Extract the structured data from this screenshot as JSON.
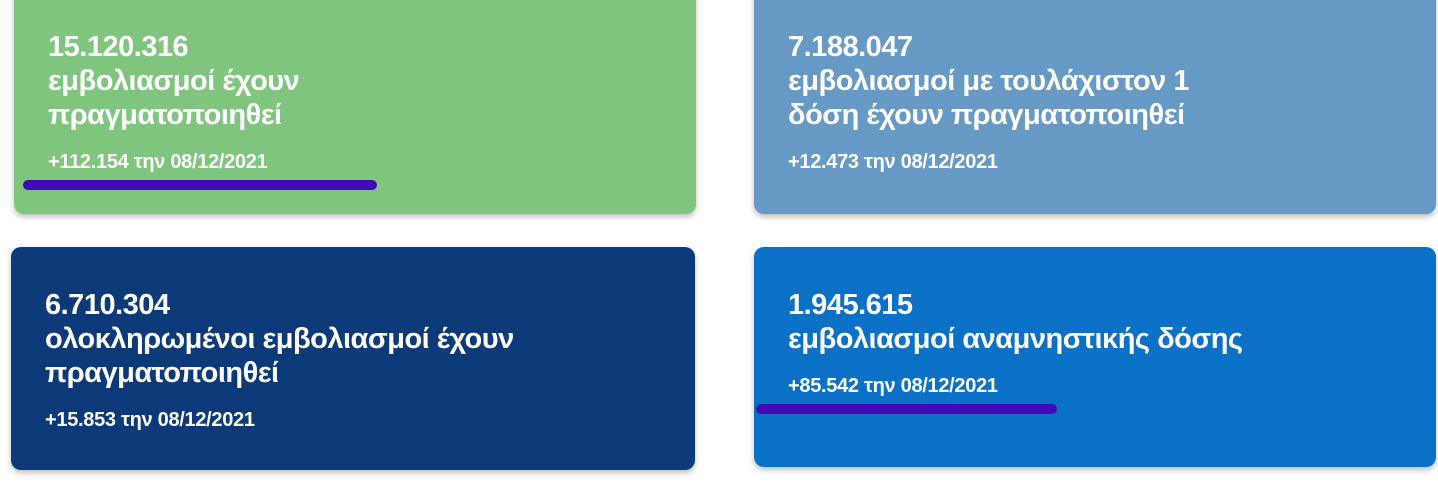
{
  "page": {
    "background_color": "#ffffff",
    "text_color": "#ffffff",
    "underline_color": "#420ab4"
  },
  "cards": [
    {
      "id": "total-vaccinations",
      "value": "15.120.316",
      "label": "εμβολιασμοί έχουν πραγματοποιηθεί",
      "label_lines": [
        "εμβολιασμοί έχουν",
        "πραγματοποιηθεί"
      ],
      "delta": "+112.154 την 08/12/2021",
      "bg_color": "#7fc57d",
      "underline": true,
      "underline_color": "#420ab4"
    },
    {
      "id": "at-least-one-dose",
      "value": "7.188.047",
      "label": "εμβολιασμοί με τουλάχιστον 1 δόση έχουν πραγματοποιηθεί",
      "label_lines": [
        "εμβολιασμοί με τουλάχιστον 1",
        "δόση έχουν πραγματοποιηθεί"
      ],
      "delta": "+12.473 την 08/12/2021",
      "bg_color": "#6699c4",
      "underline": false
    },
    {
      "id": "completed-vaccinations",
      "value": "6.710.304",
      "label": "ολοκληρωμένοι εμβολιασμοί έχουν πραγματοποιηθεί",
      "label_lines": [
        "ολοκληρωμένοι εμβολιασμοί έχουν",
        "πραγματοποιηθεί"
      ],
      "delta": "+15.853 την 08/12/2021",
      "bg_color": "#0c3a78",
      "underline": false
    },
    {
      "id": "booster-doses",
      "value": "1.945.615",
      "label": "εμβολιασμοί αναμνηστικής δόσης",
      "label_lines": [
        "εμβολιασμοί αναμνηστικής δόσης"
      ],
      "delta": "+85.542 την 08/12/2021",
      "bg_color": "#0b71c7",
      "underline": true,
      "underline_color": "#420ab4"
    }
  ]
}
